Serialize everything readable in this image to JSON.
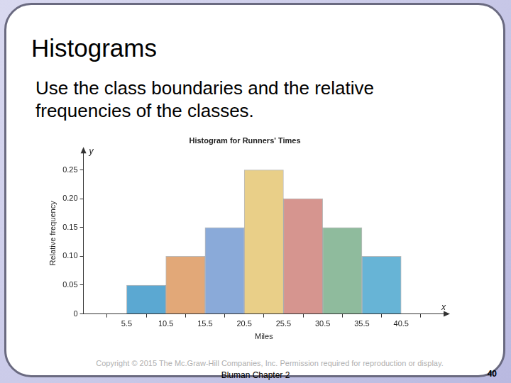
{
  "slide": {
    "title": "Histograms",
    "body": "Use the class boundaries and the relative frequencies of the classes.",
    "footer": "Copyright © 2015 The Mc.Graw-Hill Companies, Inc.  Permission required for reproduction or display.",
    "source": "Bluman Chapter 2",
    "page": 40
  },
  "chart_data": {
    "type": "histogram",
    "title": "Histogram for Runners' Times",
    "x_label": "Miles",
    "y_label": "Relative frequency",
    "axis_symbols": {
      "x": "x",
      "y": "y"
    },
    "bins": [
      5.5,
      10.5,
      15.5,
      20.5,
      25.5,
      30.5,
      35.5,
      40.5
    ],
    "values": [
      0.05,
      0.1,
      0.15,
      0.25,
      0.2,
      0.15,
      0.1
    ],
    "colors": [
      "#5ba8d2",
      "#e2a878",
      "#8aaad9",
      "#e9cf88",
      "#d6958f",
      "#8fbb9d",
      "#67b4d6"
    ],
    "xlim": [
      0,
      46
    ],
    "ylim": [
      0,
      0.28
    ],
    "xticks": [
      5.5,
      10.5,
      15.5,
      20.5,
      25.5,
      30.5,
      35.5,
      40.5
    ],
    "yticks": [
      0,
      0.05,
      {
        "value": 0.1,
        "label": "0.10"
      },
      0.15,
      {
        "value": 0.2,
        "label": "0.20"
      },
      0.25
    ],
    "grid": false
  }
}
